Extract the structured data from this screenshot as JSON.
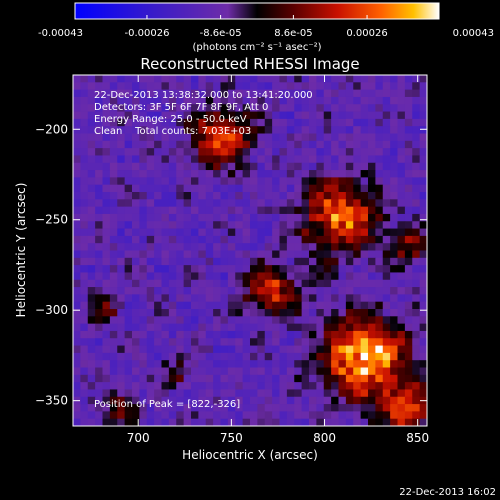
{
  "chart_data": {
    "type": "heatmap",
    "title": "Reconstructed RHESSI Image",
    "xlabel": "Heliocentric X (arcsec)",
    "ylabel": "Heliocentric Y (arcsec)",
    "xlim": [
      665,
      855
    ],
    "ylim": [
      -364,
      -170
    ],
    "x_ticks": [
      700,
      750,
      800,
      850
    ],
    "y_ticks": [
      -200,
      -250,
      -300,
      -350
    ],
    "colorbar": {
      "range": [
        -0.00043,
        0.00043
      ],
      "tick_values": [
        -0.00043,
        -0.00026,
        -8.6e-05,
        8.6e-05,
        0.00026,
        0.00043
      ],
      "tick_labels": [
        "-0.00043",
        "-0.00026",
        "-8.6e-05",
        "8.6e-05",
        "0.00026",
        "0.00043"
      ],
      "unit_label": "(photons cm⁻² s⁻¹ asec⁻²)",
      "colors": [
        "#0000ff",
        "#3a1cc8",
        "#6e2ca8",
        "#000000",
        "#5a0000",
        "#c81000",
        "#ff6000",
        "#ffc000",
        "#ffffff"
      ]
    },
    "annotations": {
      "time_range": "22-Dec-2013 13:38:32.000 to 13:41:20.000",
      "detectors": "Detectors: 3F 5F 6F 7F 8F 9F, Att 0",
      "energy": "Energy Range: 25.0 - 50.0 keV",
      "clean": "Clean    Total counts: 7.03E+03",
      "peak": "Position of Peak = [822,-326]"
    },
    "sources": [
      {
        "x": 822,
        "y": -326,
        "value": 0.00043,
        "radius": 22
      },
      {
        "x": 808,
        "y": -248,
        "value": 0.0003,
        "radius": 20
      },
      {
        "x": 745,
        "y": -205,
        "value": 0.00025,
        "radius": 16
      },
      {
        "x": 772,
        "y": -290,
        "value": 0.00022,
        "radius": 14
      },
      {
        "x": 845,
        "y": -355,
        "value": 0.00024,
        "radius": 14
      },
      {
        "x": 690,
        "y": -355,
        "value": 0.00012,
        "radius": 9
      },
      {
        "x": 682,
        "y": -300,
        "value": 0.0001,
        "radius": 8
      },
      {
        "x": 720,
        "y": -335,
        "value": 8e-05,
        "radius": 7
      },
      {
        "x": 845,
        "y": -265,
        "value": 0.00012,
        "radius": 10
      }
    ],
    "grid": false
  },
  "timestamp": "22-Dec-2013 16:02"
}
